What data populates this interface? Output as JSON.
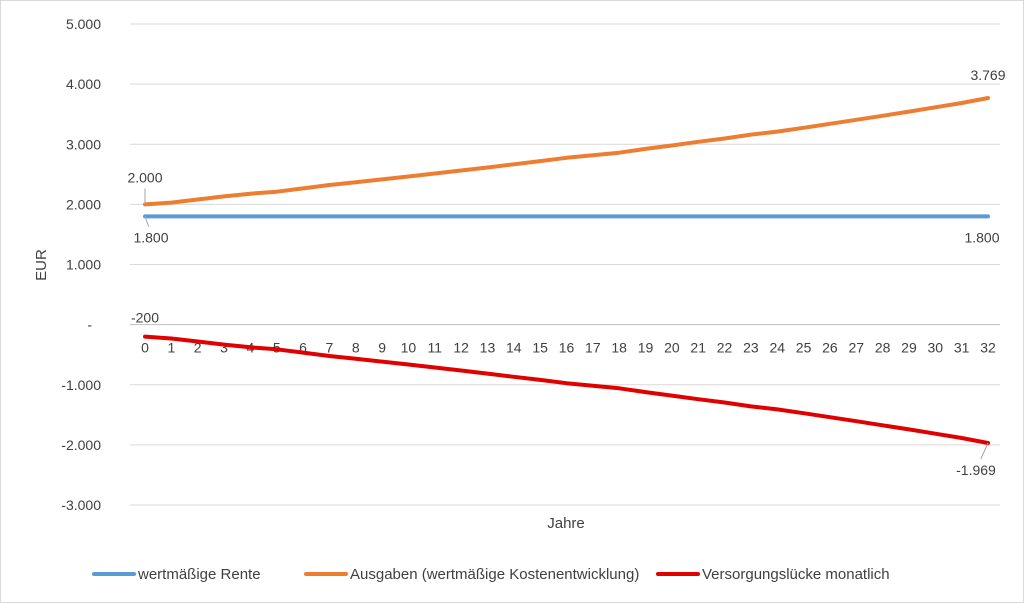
{
  "chart_data": {
    "type": "line",
    "title": "",
    "xlabel": "Jahre",
    "ylabel": "EUR",
    "ylim": [
      -3000,
      5000
    ],
    "yticks": [
      {
        "value": 5000,
        "label": "5.000"
      },
      {
        "value": 4000,
        "label": "4.000"
      },
      {
        "value": 3000,
        "label": "3.000"
      },
      {
        "value": 2000,
        "label": "2.000"
      },
      {
        "value": 1000,
        "label": "1.000"
      },
      {
        "value": 0,
        "label": "-"
      },
      {
        "value": -1000,
        "label": "-1.000"
      },
      {
        "value": -2000,
        "label": "-2.000"
      },
      {
        "value": -3000,
        "label": "-3.000"
      }
    ],
    "x": [
      "0",
      "1",
      "2",
      "3",
      "4",
      "5",
      "6",
      "7",
      "8",
      "9",
      "10",
      "11",
      "12",
      "13",
      "14",
      "15",
      "16",
      "17",
      "18",
      "19",
      "20",
      "21",
      "22",
      "23",
      "24",
      "25",
      "26",
      "27",
      "28",
      "29",
      "30",
      "31",
      "32"
    ],
    "grid": true,
    "legend_position": "bottom",
    "series": [
      {
        "name": "wertmäßige Rente",
        "color": "#5b9bd5",
        "values": [
          1800,
          1800,
          1800,
          1800,
          1800,
          1800,
          1800,
          1800,
          1800,
          1800,
          1800,
          1800,
          1800,
          1800,
          1800,
          1800,
          1800,
          1800,
          1800,
          1800,
          1800,
          1800,
          1800,
          1800,
          1800,
          1800,
          1800,
          1800,
          1800,
          1800,
          1800,
          1800,
          1800
        ]
      },
      {
        "name": "Ausgaben (wertmäßige Kostenentwicklung)",
        "color": "#ed7d31",
        "values": [
          2000,
          2030,
          2081,
          2133,
          2177,
          2210,
          2265,
          2322,
          2368,
          2415,
          2464,
          2513,
          2563,
          2614,
          2667,
          2720,
          2775,
          2817,
          2859,
          2922,
          2980,
          3040,
          3096,
          3160,
          3210,
          3274,
          3340,
          3406,
          3474,
          3543,
          3614,
          3686,
          3769
        ]
      },
      {
        "name": "Versorgungslücke monatlich",
        "color": "#e00000",
        "values": [
          -200,
          -230,
          -281,
          -333,
          -377,
          -410,
          -465,
          -522,
          -568,
          -615,
          -664,
          -713,
          -763,
          -814,
          -867,
          -920,
          -975,
          -1017,
          -1059,
          -1122,
          -1180,
          -1240,
          -1296,
          -1360,
          -1410,
          -1474,
          -1540,
          -1606,
          -1674,
          -1743,
          -1814,
          -1886,
          -1969
        ]
      }
    ],
    "data_labels": [
      {
        "series": 1,
        "index": 0,
        "text": "2.000"
      },
      {
        "series": 0,
        "index": 0,
        "text": "1.800"
      },
      {
        "series": 2,
        "index": 0,
        "text": "-200"
      },
      {
        "series": 1,
        "index": 32,
        "text": "3.769"
      },
      {
        "series": 0,
        "index": 32,
        "text": "1.800"
      },
      {
        "series": 2,
        "index": 32,
        "text": "-1.969"
      }
    ]
  }
}
